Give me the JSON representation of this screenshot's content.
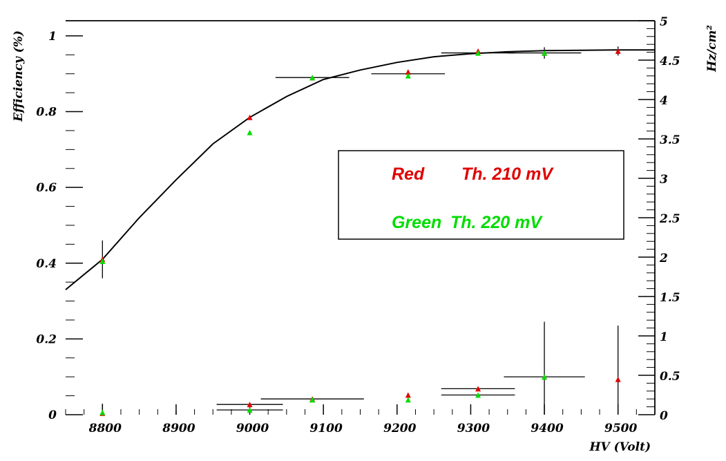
{
  "chart_data": {
    "type": "scatter",
    "xlabel": "HV (Volt)",
    "ylabel": "Efficiency (%)",
    "y2label": "Hz/cm²",
    "xlim": [
      8750,
      9550
    ],
    "ylim": [
      0,
      1.04
    ],
    "y2lim": [
      0,
      5
    ],
    "x_ticks": [
      "8800",
      "8900",
      "9000",
      "9100",
      "9200",
      "9300",
      "9400",
      "9500"
    ],
    "y_ticks": [
      "0",
      "0.2",
      "0.4",
      "0.6",
      "0.8",
      "1"
    ],
    "y2_ticks": [
      "0",
      "0.5",
      "1",
      "1.5",
      "2",
      "2.5",
      "3",
      "3.5",
      "4",
      "4.5",
      "5"
    ],
    "legend": {
      "rows": [
        {
          "name": "Red",
          "label": "Th. 210 mV",
          "color": "#e00000"
        },
        {
          "name": "Green",
          "label": "Th. 220 mV",
          "color": "#00dd00"
        }
      ],
      "placement": "center-right"
    },
    "fit_curve": {
      "description_visible": false,
      "x": [
        8750,
        8800,
        8850,
        8900,
        8950,
        9000,
        9050,
        9100,
        9150,
        9200,
        9250,
        9300,
        9350,
        9400,
        9450,
        9500,
        9550
      ],
      "y": [
        0.33,
        0.41,
        0.52,
        0.62,
        0.715,
        0.785,
        0.84,
        0.885,
        0.91,
        0.93,
        0.945,
        0.953,
        0.958,
        0.961,
        0.962,
        0.963,
        0.963
      ]
    },
    "series": [
      {
        "name": "Red",
        "color": "#e00000",
        "efficiency": {
          "x": [
            8800,
            9000,
            9085,
            9215,
            9310,
            9400,
            9500
          ],
          "y": [
            0.41,
            0.785,
            0.89,
            0.905,
            0.96,
            0.955,
            0.96
          ]
        },
        "rate": {
          "x": [
            8800,
            9000,
            9085,
            9215,
            9310,
            9400,
            9500
          ],
          "y": [
            0.02,
            0.13,
            0.2,
            0.25,
            0.33,
            0.48,
            0.45
          ]
        }
      },
      {
        "name": "Green",
        "color": "#00dd00",
        "efficiency": {
          "x": [
            8800,
            9000,
            9085,
            9215,
            9310,
            9400
          ],
          "y": [
            0.405,
            0.745,
            0.89,
            0.895,
            0.955,
            0.955
          ]
        },
        "rate": {
          "x": [
            8800,
            9000,
            9085,
            9215,
            9310,
            9400
          ],
          "y": [
            0.03,
            0.06,
            0.19,
            0.19,
            0.25,
            0.48
          ]
        }
      }
    ],
    "error_bars": {
      "efficiency": [
        {
          "x": 8800,
          "y": 0.41,
          "xerr": 0,
          "yerr": 0.05
        },
        {
          "x": 9085,
          "y": 0.89,
          "xerr": 50,
          "yerr": 0
        },
        {
          "x": 9215,
          "y": 0.9,
          "xerr": 50,
          "yerr": 0
        },
        {
          "x": 9310,
          "y": 0.955,
          "xerr": 50,
          "yerr": 0
        },
        {
          "x": 9400,
          "y": 0.955,
          "xerr": 50,
          "yerr": 0.015
        },
        {
          "x": 9500,
          "y": 0.96,
          "xerr": 0,
          "yerr": 0.012
        }
      ],
      "rate": [
        {
          "x": 8800,
          "y": 0.02,
          "xerr": 0,
          "yerr": 0.12
        },
        {
          "x": 8900,
          "y": 0.0,
          "xerr": 0,
          "yerr": 0.05
        },
        {
          "x": 9000,
          "y": 0.13,
          "xerr": 45,
          "yerr": 0.0
        },
        {
          "x": 9000,
          "y": 0.06,
          "xerr": 45,
          "yerr": 0.0
        },
        {
          "x": 9085,
          "y": 0.2,
          "xerr": 70,
          "yerr": 0.0
        },
        {
          "x": 9310,
          "y": 0.33,
          "xerr": 50,
          "yerr": 0.0
        },
        {
          "x": 9310,
          "y": 0.25,
          "xerr": 50,
          "yerr": 0.0
        },
        {
          "x": 9400,
          "y": 0.48,
          "xerr": 55,
          "yerr": 0.7
        },
        {
          "x": 9500,
          "y": 0.45,
          "xerr": 0,
          "yerr": 0.68
        }
      ]
    }
  }
}
